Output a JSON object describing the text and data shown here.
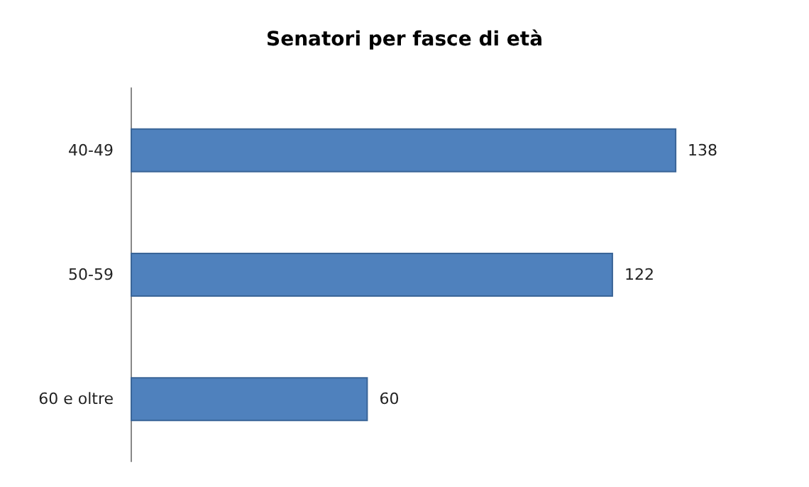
{
  "chart_data": {
    "type": "bar",
    "title": "Senatori per fasce di età",
    "orientation": "horizontal",
    "categories": [
      "40-49",
      "50-59",
      "60 e oltre"
    ],
    "values": [
      138,
      122,
      60
    ],
    "color": "#4f81bd",
    "data_labels": true
  }
}
